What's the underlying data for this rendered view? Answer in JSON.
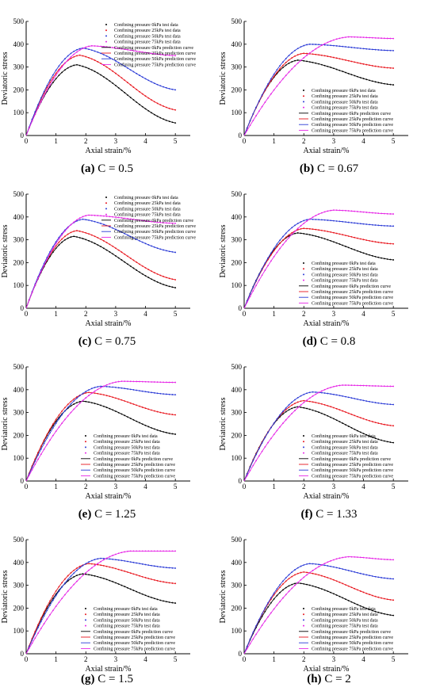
{
  "colors": {
    "0kPa": "#000000",
    "25kPa": "#e8141c",
    "50kPa": "#2a3ad6",
    "75kPa": "#e624e6"
  },
  "legend_labels": [
    "Confining pressure 0kPa test data",
    "Confining pressure 25kPa test data",
    "Confining pressure 50kPa test data",
    "Confining pressure 75kPa test data",
    "Confining pressure 0kPa prediction curve",
    "Confining pressure 25kPa prediction curve",
    "Confining pressure 50kPa prediction curve",
    "Confining pressure 75kPa prediction curve"
  ],
  "chart_data": [
    {
      "type": "line",
      "caption_letter": "(a)",
      "caption_text": " C = 0.5",
      "xlabel": "Axial strain/%",
      "ylabel": "Deviatoric stress",
      "xlim": [
        0,
        5.5
      ],
      "ylim": [
        0,
        500
      ],
      "xticks": [
        0,
        1,
        2,
        3,
        4,
        5
      ],
      "yticks": [
        0,
        100,
        200,
        300,
        400,
        500
      ],
      "legend_position": "top-right",
      "series": [
        {
          "name": "Confining pressure 0kPa",
          "peak": 310,
          "peak_x": 1.7,
          "end": 55
        },
        {
          "name": "Confining pressure 25kPa",
          "peak": 352,
          "peak_x": 1.8,
          "end": 112
        },
        {
          "name": "Confining pressure 50kPa",
          "peak": 383,
          "peak_x": 1.9,
          "end": 200
        },
        {
          "name": "Confining pressure 75kPa",
          "peak": 393,
          "peak_x": 2.2,
          "end": 350
        }
      ]
    },
    {
      "type": "line",
      "caption_letter": "(b)",
      "caption_text": " C = 0.67",
      "xlabel": "Axial strain/%",
      "ylabel": "Deviatoric stress",
      "xlim": [
        0,
        5.5
      ],
      "ylim": [
        0,
        500
      ],
      "xticks": [
        0,
        1,
        2,
        3,
        4,
        5
      ],
      "yticks": [
        0,
        100,
        200,
        300,
        400,
        500
      ],
      "legend_position": "bottom-right",
      "series": [
        {
          "name": "Confining pressure 0kPa",
          "peak": 330,
          "peak_x": 1.8,
          "end": 222
        },
        {
          "name": "Confining pressure 25kPa",
          "peak": 360,
          "peak_x": 2.0,
          "end": 295
        },
        {
          "name": "Confining pressure 50kPa",
          "peak": 400,
          "peak_x": 2.2,
          "end": 372
        },
        {
          "name": "Confining pressure 75kPa",
          "peak": 432,
          "peak_x": 3.5,
          "end": 425
        }
      ]
    },
    {
      "type": "line",
      "caption_letter": "(c)",
      "caption_text": " C = 0.75",
      "xlabel": "Axial strain/%",
      "ylabel": "Deviatoric stress",
      "xlim": [
        0,
        5.5
      ],
      "ylim": [
        0,
        500
      ],
      "xticks": [
        0,
        1,
        2,
        3,
        4,
        5
      ],
      "yticks": [
        0,
        100,
        200,
        300,
        400,
        500
      ],
      "legend_position": "top-right",
      "series": [
        {
          "name": "Confining pressure 0kPa",
          "peak": 315,
          "peak_x": 1.6,
          "end": 90
        },
        {
          "name": "Confining pressure 25kPa",
          "peak": 340,
          "peak_x": 1.7,
          "end": 125
        },
        {
          "name": "Confining pressure 50kPa",
          "peak": 390,
          "peak_x": 1.9,
          "end": 245
        },
        {
          "name": "Confining pressure 75kPa",
          "peak": 408,
          "peak_x": 2.1,
          "end": 372
        }
      ]
    },
    {
      "type": "line",
      "caption_letter": "(d)",
      "caption_text": " C = 0.8",
      "xlabel": "Axial strain/%",
      "ylabel": "Deviatoric stress",
      "xlim": [
        0,
        5.5
      ],
      "ylim": [
        0,
        500
      ],
      "xticks": [
        0,
        1,
        2,
        3,
        4,
        5
      ],
      "yticks": [
        0,
        100,
        200,
        300,
        400,
        500
      ],
      "legend_position": "bottom-right",
      "series": [
        {
          "name": "Confining pressure 0kPa",
          "peak": 330,
          "peak_x": 1.8,
          "end": 212
        },
        {
          "name": "Confining pressure 25kPa",
          "peak": 350,
          "peak_x": 2.0,
          "end": 282
        },
        {
          "name": "Confining pressure 50kPa",
          "peak": 390,
          "peak_x": 2.2,
          "end": 360
        },
        {
          "name": "Confining pressure 75kPa",
          "peak": 430,
          "peak_x": 3.0,
          "end": 413
        }
      ]
    },
    {
      "type": "line",
      "caption_letter": "(e)",
      "caption_text": " C = 1.25",
      "xlabel": "Axial strain/%",
      "ylabel": "Deviatoric stress",
      "xlim": [
        0,
        5.5
      ],
      "ylim": [
        0,
        500
      ],
      "xticks": [
        0,
        1,
        2,
        3,
        4,
        5
      ],
      "yticks": [
        0,
        100,
        200,
        300,
        400,
        500
      ],
      "legend_position": "bottom-right",
      "series": [
        {
          "name": "Confining pressure 0kPa",
          "peak": 350,
          "peak_x": 1.9,
          "end": 205
        },
        {
          "name": "Confining pressure 25kPa",
          "peak": 388,
          "peak_x": 2.1,
          "end": 290
        },
        {
          "name": "Confining pressure 50kPa",
          "peak": 415,
          "peak_x": 2.5,
          "end": 378
        },
        {
          "name": "Confining pressure 75kPa",
          "peak": 437,
          "peak_x": 3.2,
          "end": 432
        }
      ]
    },
    {
      "type": "line",
      "caption_letter": "(f)",
      "caption_text": " C = 1.33",
      "xlabel": "Axial strain/%",
      "ylabel": "Deviatoric stress",
      "xlim": [
        0,
        5.5
      ],
      "ylim": [
        0,
        500
      ],
      "xticks": [
        0,
        1,
        2,
        3,
        4,
        5
      ],
      "yticks": [
        0,
        100,
        200,
        300,
        400,
        500
      ],
      "legend_position": "bottom-right",
      "series": [
        {
          "name": "Confining pressure 0kPa",
          "peak": 325,
          "peak_x": 1.8,
          "end": 168
        },
        {
          "name": "Confining pressure 25kPa",
          "peak": 352,
          "peak_x": 2.0,
          "end": 242
        },
        {
          "name": "Confining pressure 50kPa",
          "peak": 390,
          "peak_x": 2.3,
          "end": 335
        },
        {
          "name": "Confining pressure 75kPa",
          "peak": 420,
          "peak_x": 3.3,
          "end": 415
        }
      ]
    },
    {
      "type": "line",
      "caption_letter": "(g)",
      "caption_text": " C = 1.5",
      "xlabel": "Axial strain/%",
      "ylabel": "Deviatoric stress",
      "xlim": [
        0,
        5.5
      ],
      "ylim": [
        0,
        500
      ],
      "xticks": [
        0,
        1,
        2,
        3,
        4,
        5
      ],
      "yticks": [
        0,
        100,
        200,
        300,
        400,
        500
      ],
      "legend_position": "bottom-right",
      "series": [
        {
          "name": "Confining pressure 0kPa",
          "peak": 350,
          "peak_x": 1.9,
          "end": 222
        },
        {
          "name": "Confining pressure 25kPa",
          "peak": 395,
          "peak_x": 2.1,
          "end": 308
        },
        {
          "name": "Confining pressure 50kPa",
          "peak": 418,
          "peak_x": 2.5,
          "end": 375
        },
        {
          "name": "Confining pressure 75kPa",
          "peak": 450,
          "peak_x": 3.5,
          "end": 450
        }
      ]
    },
    {
      "type": "line",
      "caption_letter": "(h)",
      "caption_text": " C = 2",
      "xlabel": "Axial strain/%",
      "ylabel": "Deviatoric stress",
      "xlim": [
        0,
        5.5
      ],
      "ylim": [
        0,
        500
      ],
      "xticks": [
        0,
        1,
        2,
        3,
        4,
        5
      ],
      "yticks": [
        0,
        100,
        200,
        300,
        400,
        500
      ],
      "legend_position": "bottom-right",
      "series": [
        {
          "name": "Confining pressure 0kPa",
          "peak": 310,
          "peak_x": 1.8,
          "end": 168
        },
        {
          "name": "Confining pressure 25kPa",
          "peak": 358,
          "peak_x": 2.0,
          "end": 235
        },
        {
          "name": "Confining pressure 50kPa",
          "peak": 395,
          "peak_x": 2.2,
          "end": 328
        },
        {
          "name": "Confining pressure 75kPa",
          "peak": 425,
          "peak_x": 3.5,
          "end": 412
        }
      ]
    }
  ]
}
